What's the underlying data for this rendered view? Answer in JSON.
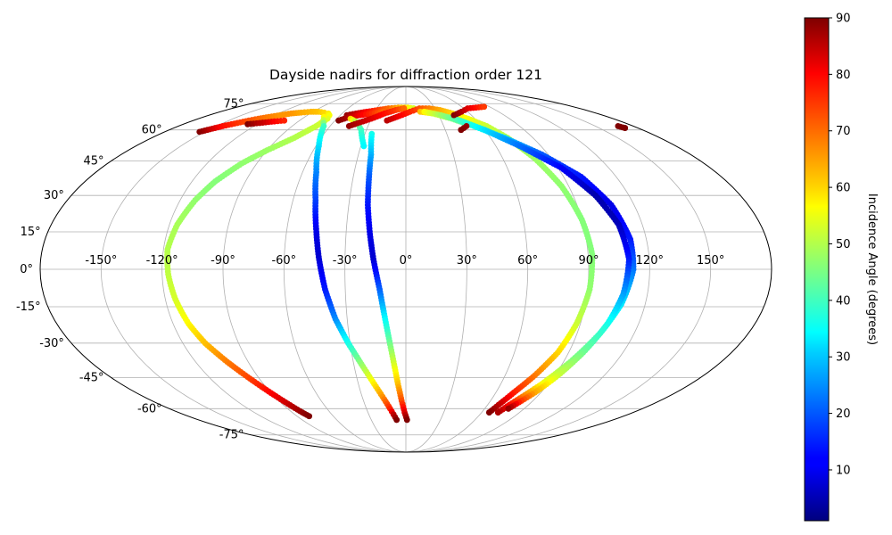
{
  "chart_data": {
    "type": "scatter",
    "projection": "mollweide",
    "title": "Dayside nadirs for diffraction order 121",
    "lon_tick_labels": [
      "-150°",
      "-120°",
      "-90°",
      "-60°",
      "-30°",
      "0°",
      "30°",
      "60°",
      "90°",
      "120°",
      "150°"
    ],
    "lat_tick_labels": [
      "-75°",
      "-60°",
      "-45°",
      "-30°",
      "-15°",
      "0°",
      "15°",
      "30°",
      "45°",
      "60°",
      "75°"
    ],
    "grid": true,
    "colorbar": {
      "label": "Incidence Angle (degrees)",
      "colormap": "jet",
      "range": [
        1,
        90
      ],
      "ticks": [
        "10",
        "20",
        "30",
        "40",
        "50",
        "60",
        "70",
        "80",
        "90"
      ]
    },
    "tracks": [
      {
        "points": [
          [
            -154,
            59,
            90
          ],
          [
            -151,
            60,
            86
          ],
          [
            -148,
            61,
            82
          ],
          [
            -145,
            62,
            78
          ],
          [
            -141,
            63,
            76
          ],
          [
            -137,
            64,
            74
          ],
          [
            -133,
            65,
            72
          ],
          [
            -128,
            66,
            70
          ],
          [
            -122,
            67,
            68
          ],
          [
            -115,
            68,
            66
          ],
          [
            -108,
            69,
            66
          ],
          [
            -100,
            69.5,
            64
          ],
          [
            -92,
            70,
            63
          ],
          [
            -85,
            70,
            62
          ],
          [
            -78,
            69.5,
            60
          ],
          [
            -73,
            69,
            58
          ],
          [
            -70,
            68,
            56
          ],
          [
            -68,
            66,
            54
          ],
          [
            -71,
            62,
            52
          ],
          [
            -79,
            56,
            50
          ],
          [
            -90,
            50,
            48
          ],
          [
            -99,
            44,
            47
          ],
          [
            -107,
            36,
            46
          ],
          [
            -112,
            28,
            47
          ],
          [
            -116,
            18,
            49
          ],
          [
            -118,
            8,
            50
          ],
          [
            -117,
            -2,
            51
          ],
          [
            -115,
            -12,
            53
          ],
          [
            -112,
            -22,
            57
          ],
          [
            -108,
            -30,
            62
          ],
          [
            -102,
            -38,
            68
          ],
          [
            -97,
            -44,
            72
          ],
          [
            -92,
            -50,
            77
          ],
          [
            -87,
            -56,
            82
          ],
          [
            -82,
            -62,
            88
          ],
          [
            -80,
            -64,
            90
          ]
        ]
      },
      {
        "points": [
          [
            -128,
            63,
            90
          ],
          [
            -122,
            63.5,
            86
          ],
          [
            -116,
            64,
            83
          ],
          [
            -110,
            64.5,
            79
          ],
          [
            -103,
            65,
            76
          ]
        ]
      },
      {
        "points": [
          [
            -73,
            67,
            57
          ],
          [
            -65,
            62,
            40
          ],
          [
            -58,
            52,
            32
          ],
          [
            -52,
            40,
            24
          ],
          [
            -48,
            28,
            18
          ],
          [
            -45,
            15,
            10
          ],
          [
            -43,
            5,
            8
          ],
          [
            -40,
            -8,
            14
          ],
          [
            -36,
            -20,
            24
          ],
          [
            -31,
            -30,
            36
          ],
          [
            -25,
            -40,
            48
          ],
          [
            -20,
            -48,
            58
          ],
          [
            -16,
            -54,
            66
          ],
          [
            -12,
            -60,
            76
          ],
          [
            -10,
            -63,
            84
          ],
          [
            -8,
            -66,
            90
          ]
        ]
      },
      {
        "points": [
          [
            -54,
            68,
            88
          ],
          [
            -47,
            69,
            84
          ],
          [
            -38,
            70,
            79
          ],
          [
            -28,
            71,
            74
          ],
          [
            -18,
            72,
            70
          ],
          [
            -8,
            72.5,
            64
          ],
          [
            2,
            72.5,
            58
          ],
          [
            8,
            72,
            53
          ]
        ]
      },
      {
        "points": [
          [
            -57,
            65,
            90
          ],
          [
            -50,
            67,
            85
          ],
          [
            -42,
            68,
            80
          ],
          [
            -32,
            69,
            75
          ],
          [
            -22,
            70,
            70
          ]
        ]
      },
      {
        "points": [
          [
            -48,
            66,
            60
          ],
          [
            -40,
            64,
            48
          ],
          [
            -34,
            60,
            40
          ],
          [
            -28,
            52,
            34
          ]
        ]
      },
      {
        "points": [
          [
            -45,
            62,
            88
          ],
          [
            -38,
            64,
            85
          ],
          [
            -30,
            66,
            82
          ],
          [
            -20,
            69,
            78
          ],
          [
            -10,
            71,
            74
          ],
          [
            -2,
            72,
            70
          ]
        ]
      },
      {
        "points": [
          [
            -25,
            58,
            36
          ],
          [
            -22,
            48,
            28
          ],
          [
            -21,
            38,
            20
          ],
          [
            -20,
            26,
            14
          ],
          [
            -18,
            14,
            10
          ],
          [
            -16,
            4,
            8
          ],
          [
            -13,
            -8,
            20
          ],
          [
            -11,
            -18,
            32
          ],
          [
            -9,
            -28,
            42
          ],
          [
            -7,
            -38,
            52
          ],
          [
            -5,
            -48,
            62
          ],
          [
            -3,
            -56,
            72
          ],
          [
            -1,
            -62,
            82
          ],
          [
            1,
            -66,
            90
          ]
        ]
      },
      {
        "points": [
          [
            -16,
            65,
            85
          ],
          [
            -6,
            67.5,
            80
          ],
          [
            4,
            70,
            76
          ],
          [
            14,
            72,
            72
          ],
          [
            24,
            72,
            68
          ],
          [
            34,
            71,
            64
          ],
          [
            44,
            69,
            60
          ],
          [
            54,
            66,
            56
          ],
          [
            64,
            62,
            52
          ],
          [
            72,
            56,
            50
          ],
          [
            80,
            46,
            48
          ],
          [
            86,
            34,
            47
          ],
          [
            90,
            20,
            46
          ],
          [
            92,
            6,
            46
          ],
          [
            91,
            -8,
            47
          ],
          [
            88,
            -22,
            52
          ],
          [
            84,
            -34,
            60
          ],
          [
            78,
            -44,
            68
          ],
          [
            72,
            -52,
            76
          ],
          [
            68,
            -58,
            84
          ],
          [
            66,
            -62,
            90
          ]
        ]
      },
      {
        "points": [
          [
            14,
            70,
            62
          ],
          [
            26,
            69,
            56
          ],
          [
            40,
            66,
            46
          ],
          [
            54,
            62,
            38
          ],
          [
            70,
            56,
            30
          ],
          [
            86,
            48,
            20
          ],
          [
            100,
            38,
            14
          ],
          [
            108,
            26,
            10
          ],
          [
            112,
            12,
            14
          ],
          [
            112,
            0,
            22
          ],
          [
            108,
            -14,
            32
          ],
          [
            102,
            -26,
            40
          ],
          [
            94,
            -38,
            46
          ],
          [
            86,
            -48,
            56
          ],
          [
            80,
            -54,
            68
          ],
          [
            76,
            -58,
            78
          ],
          [
            73,
            -62,
            86
          ]
        ]
      },
      {
        "points": [
          [
            18,
            70,
            57
          ],
          [
            32,
            68,
            48
          ],
          [
            46,
            65,
            40
          ],
          [
            60,
            60,
            32
          ],
          [
            76,
            52,
            22
          ],
          [
            92,
            42,
            12
          ],
          [
            102,
            30,
            5
          ],
          [
            108,
            18,
            6
          ],
          [
            110,
            4,
            14
          ],
          [
            108,
            -10,
            26
          ],
          [
            104,
            -22,
            36
          ],
          [
            98,
            -34,
            44
          ],
          [
            92,
            -44,
            52
          ],
          [
            86,
            -52,
            64
          ],
          [
            82,
            -56,
            74
          ],
          [
            78,
            -60,
            88
          ]
        ]
      },
      {
        "points": [
          [
            48,
            62,
            88
          ],
          [
            42,
            60,
            90
          ]
        ]
      },
      {
        "points": [
          [
            44,
            68,
            90
          ],
          [
            54,
            70,
            86
          ],
          [
            64,
            72,
            82
          ],
          [
            74,
            72.5,
            78
          ],
          [
            84,
            73,
            74
          ]
        ]
      },
      {
        "points": [
          [
            168,
            62,
            90
          ],
          [
            170,
            61,
            90
          ]
        ]
      }
    ]
  }
}
